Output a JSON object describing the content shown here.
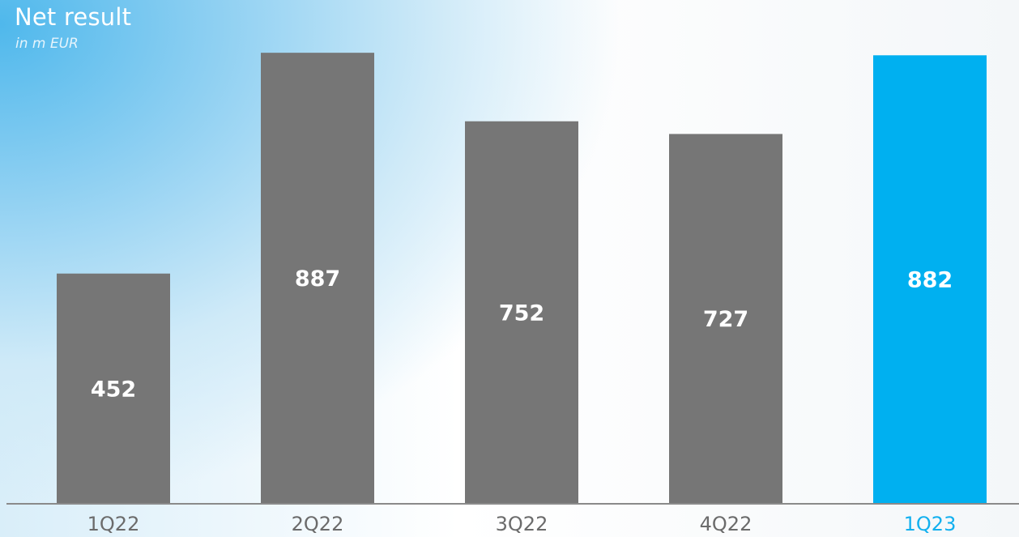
{
  "header": {
    "title": "Net result",
    "subtitle": "in m EUR"
  },
  "colors": {
    "bar_default": "#767676",
    "bar_highlight": "#00b0f0",
    "axis": "#8a8a8a"
  },
  "chart_data": {
    "type": "bar",
    "title": "Net result",
    "subtitle": "in m EUR",
    "categories": [
      "1Q22",
      "2Q22",
      "3Q22",
      "4Q22",
      "1Q23"
    ],
    "values": [
      452,
      887,
      752,
      727,
      882
    ],
    "highlight_index": 4,
    "ylim": [
      0,
      900
    ],
    "grid": false,
    "legend": "none",
    "xlabel": "",
    "ylabel": ""
  }
}
